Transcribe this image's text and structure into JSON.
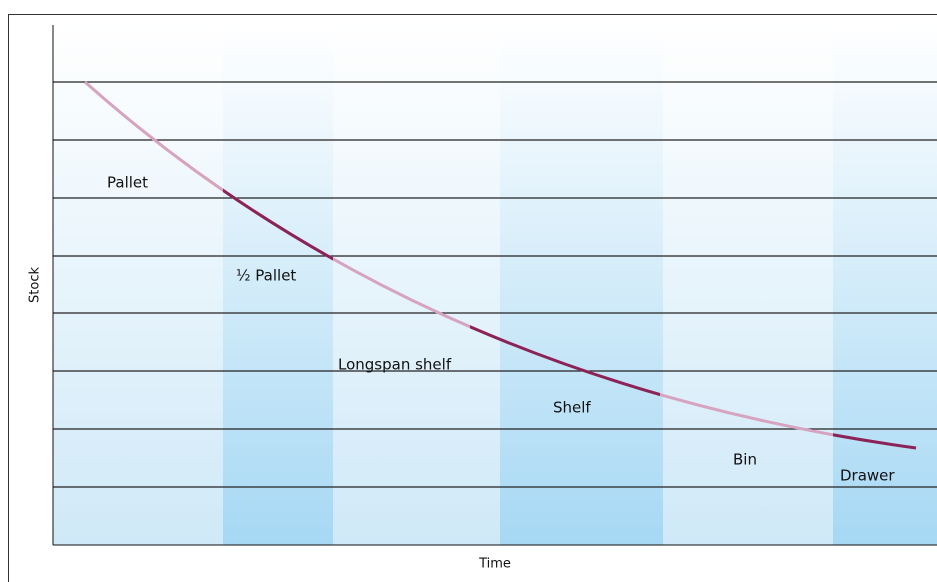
{
  "axes": {
    "x_label": "Time",
    "y_label": "Stock"
  },
  "zones": [
    {
      "label": "Pallet"
    },
    {
      "label": "½ Pallet"
    },
    {
      "label": "Longspan shelf"
    },
    {
      "label": "Shelf"
    },
    {
      "label": "Bin"
    },
    {
      "label": "Drawer"
    }
  ]
}
